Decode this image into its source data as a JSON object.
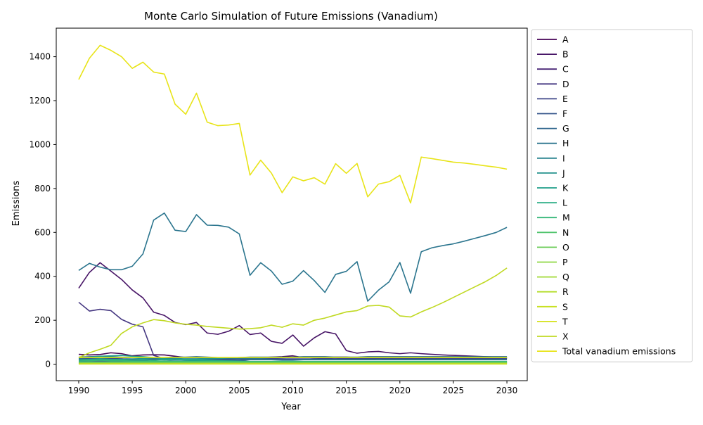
{
  "chart_data": {
    "type": "line",
    "title": "Monte Carlo Simulation of Future Emissions (Vanadium)",
    "xlabel": "Year",
    "ylabel": "Emissions",
    "xlim": [
      1987.9,
      2031.9
    ],
    "ylim": [
      -75,
      1530
    ],
    "xticks": [
      1990,
      1995,
      2000,
      2005,
      2010,
      2015,
      2020,
      2025,
      2030
    ],
    "yticks": [
      0,
      200,
      400,
      600,
      800,
      1000,
      1200,
      1400
    ],
    "grid": false,
    "legend_position": "outside-right",
    "x": [
      1990,
      1991,
      1992,
      1993,
      1994,
      1995,
      1996,
      1997,
      1998,
      1999,
      2000,
      2001,
      2002,
      2003,
      2004,
      2005,
      2006,
      2007,
      2008,
      2009,
      2010,
      2011,
      2012,
      2013,
      2014,
      2015,
      2016,
      2017,
      2018,
      2019,
      2020,
      2021,
      2022,
      2023,
      2024,
      2025,
      2026,
      2027,
      2028,
      2029,
      2030
    ],
    "series": [
      {
        "name": "A",
        "color": "#440154",
        "values": [
          45,
          42,
          44,
          52,
          48,
          38,
          42,
          43,
          42,
          36,
          30,
          32,
          30,
          28,
          28,
          30,
          30,
          30,
          32,
          34,
          38,
          30,
          30,
          30,
          32,
          32,
          30,
          30,
          30,
          30,
          28,
          30,
          32,
          32,
          32,
          31,
          31,
          30,
          30,
          30,
          30
        ]
      },
      {
        "name": "B",
        "color": "#471466",
        "values": [
          346,
          418,
          462,
          424,
          386,
          338,
          302,
          237,
          222,
          190,
          180,
          190,
          142,
          136,
          150,
          176,
          135,
          142,
          104,
          95,
          133,
          82,
          120,
          148,
          138,
          62,
          50,
          56,
          58,
          52,
          48,
          52,
          48,
          45,
          42,
          40,
          38,
          36,
          34,
          32,
          30
        ]
      },
      {
        "name": "C",
        "color": "#482475",
        "values": [
          20,
          24,
          28,
          26,
          24,
          20,
          18,
          22,
          24,
          22,
          20,
          18,
          18,
          20,
          22,
          24,
          22,
          24,
          24,
          22,
          22,
          22,
          24,
          22,
          24,
          24,
          24,
          24,
          26,
          24,
          24,
          24,
          25,
          25,
          25,
          25,
          25,
          25,
          25,
          25,
          25
        ]
      },
      {
        "name": "D",
        "color": "#453781",
        "values": [
          282,
          242,
          250,
          244,
          204,
          182,
          170,
          40,
          25,
          20,
          18,
          18,
          20,
          20,
          22,
          24,
          26,
          24,
          24,
          24,
          22,
          22,
          24,
          26,
          24,
          26,
          26,
          26,
          26,
          26,
          26,
          26,
          26,
          26,
          26,
          26,
          26,
          26,
          26,
          26,
          26
        ]
      },
      {
        "name": "E",
        "color": "#3f4788",
        "values": [
          24,
          26,
          26,
          24,
          24,
          22,
          22,
          24,
          24,
          22,
          24,
          24,
          24,
          24,
          24,
          24,
          26,
          26,
          26,
          24,
          24,
          24,
          24,
          24,
          24,
          26,
          26,
          26,
          26,
          26,
          26,
          26,
          26,
          26,
          26,
          26,
          26,
          26,
          26,
          26,
          26
        ]
      },
      {
        "name": "F",
        "color": "#38588c",
        "values": [
          10,
          12,
          14,
          12,
          12,
          12,
          14,
          12,
          14,
          12,
          12,
          12,
          12,
          12,
          12,
          16,
          12,
          12,
          10,
          10,
          10,
          12,
          12,
          12,
          12,
          12,
          12,
          12,
          12,
          12,
          12,
          12,
          12,
          12,
          12,
          12,
          12,
          12,
          12,
          12,
          12
        ]
      },
      {
        "name": "G",
        "color": "#31678e",
        "values": [
          32,
          34,
          36,
          34,
          32,
          30,
          28,
          30,
          30,
          32,
          32,
          34,
          32,
          30,
          30,
          30,
          32,
          32,
          32,
          32,
          32,
          34,
          34,
          34,
          32,
          32,
          32,
          34,
          34,
          34,
          34,
          34,
          34,
          34,
          34,
          34,
          34,
          34,
          34,
          34,
          34
        ]
      },
      {
        "name": "H",
        "color": "#2b758e",
        "values": [
          427,
          459,
          442,
          430,
          430,
          446,
          502,
          656,
          688,
          610,
          604,
          681,
          633,
          632,
          624,
          593,
          405,
          462,
          424,
          364,
          378,
          426,
          381,
          327,
          409,
          423,
          467,
          287,
          337,
          375,
          463,
          323,
          512,
          530,
          540,
          548,
          560,
          573,
          586,
          600,
          623
        ]
      },
      {
        "name": "I",
        "color": "#26828e",
        "values": [
          18,
          20,
          22,
          20,
          20,
          18,
          18,
          20,
          20,
          18,
          18,
          20,
          20,
          18,
          18,
          18,
          20,
          20,
          20,
          18,
          18,
          20,
          20,
          20,
          20,
          20,
          20,
          20,
          20,
          20,
          20,
          20,
          20,
          20,
          20,
          20,
          20,
          20,
          20,
          20,
          20
        ]
      },
      {
        "name": "J",
        "color": "#21918c",
        "values": [
          28,
          30,
          30,
          32,
          30,
          28,
          26,
          28,
          28,
          26,
          24,
          24,
          26,
          26,
          28,
          28,
          28,
          28,
          30,
          30,
          30,
          30,
          30,
          30,
          30,
          30,
          30,
          30,
          30,
          30,
          30,
          30,
          30,
          30,
          30,
          30,
          30,
          30,
          30,
          30,
          30
        ]
      },
      {
        "name": "K",
        "color": "#1f9e89",
        "values": [
          30,
          32,
          36,
          38,
          40,
          36,
          34,
          30,
          24,
          20,
          18,
          16,
          16,
          14,
          12,
          10,
          10,
          10,
          10,
          8,
          8,
          8,
          8,
          8,
          8,
          8,
          8,
          8,
          8,
          8,
          8,
          8,
          8,
          8,
          8,
          8,
          8,
          8,
          8,
          8,
          8
        ]
      },
      {
        "name": "L",
        "color": "#25ab82",
        "values": [
          20,
          22,
          24,
          22,
          22,
          20,
          22,
          18,
          22,
          20,
          22,
          20,
          18,
          16,
          14,
          12,
          10,
          8,
          8,
          8,
          8,
          8,
          8,
          8,
          8,
          8,
          8,
          8,
          8,
          8,
          8,
          8,
          8,
          8,
          8,
          8,
          8,
          8,
          8,
          8,
          8
        ]
      },
      {
        "name": "M",
        "color": "#35b779",
        "values": [
          14,
          16,
          18,
          16,
          16,
          14,
          14,
          14,
          14,
          12,
          12,
          12,
          12,
          12,
          12,
          12,
          12,
          12,
          12,
          12,
          12,
          12,
          12,
          12,
          12,
          12,
          12,
          12,
          12,
          12,
          12,
          12,
          12,
          12,
          12,
          12,
          12,
          12,
          12,
          12,
          12
        ]
      },
      {
        "name": "N",
        "color": "#4ec36b",
        "values": [
          8,
          10,
          10,
          10,
          10,
          10,
          10,
          10,
          10,
          10,
          10,
          10,
          10,
          10,
          10,
          10,
          10,
          10,
          10,
          10,
          10,
          10,
          10,
          10,
          10,
          10,
          10,
          10,
          10,
          10,
          10,
          10,
          10,
          10,
          10,
          10,
          10,
          10,
          10,
          10,
          10
        ]
      },
      {
        "name": "O",
        "color": "#6ccd5a",
        "values": [
          6,
          6,
          6,
          6,
          6,
          6,
          6,
          6,
          6,
          6,
          6,
          6,
          6,
          6,
          6,
          6,
          6,
          6,
          6,
          6,
          6,
          6,
          6,
          6,
          6,
          6,
          6,
          6,
          6,
          6,
          6,
          6,
          6,
          6,
          6,
          6,
          6,
          6,
          6,
          6,
          6
        ]
      },
      {
        "name": "P",
        "color": "#8fd744",
        "values": [
          4,
          4,
          4,
          4,
          4,
          4,
          4,
          4,
          4,
          4,
          4,
          4,
          4,
          4,
          4,
          4,
          4,
          4,
          4,
          4,
          4,
          4,
          4,
          4,
          4,
          4,
          4,
          4,
          4,
          4,
          4,
          4,
          4,
          4,
          4,
          4,
          4,
          4,
          4,
          4,
          4
        ]
      },
      {
        "name": "Q",
        "color": "#a2da37",
        "values": [
          3,
          3,
          3,
          3,
          3,
          3,
          3,
          3,
          3,
          3,
          3,
          3,
          3,
          3,
          3,
          3,
          3,
          3,
          3,
          3,
          3,
          3,
          3,
          3,
          3,
          3,
          3,
          3,
          3,
          3,
          3,
          3,
          3,
          3,
          3,
          3,
          3,
          3,
          3,
          3,
          3
        ]
      },
      {
        "name": "R",
        "color": "#b5de2b",
        "values": [
          2,
          2,
          2,
          2,
          2,
          2,
          2,
          2,
          2,
          2,
          2,
          2,
          2,
          2,
          2,
          2,
          2,
          2,
          2,
          2,
          2,
          2,
          2,
          2,
          2,
          2,
          2,
          2,
          2,
          2,
          2,
          2,
          2,
          2,
          2,
          2,
          2,
          2,
          2,
          2,
          2
        ]
      },
      {
        "name": "S",
        "color": "#c8e020",
        "values": [
          1,
          1,
          1,
          1,
          1,
          1,
          1,
          1,
          1,
          1,
          1,
          1,
          1,
          1,
          1,
          1,
          1,
          1,
          1,
          1,
          1,
          1,
          1,
          1,
          1,
          1,
          1,
          1,
          1,
          1,
          1,
          1,
          1,
          1,
          1,
          1,
          1,
          1,
          1,
          1,
          1
        ]
      },
      {
        "name": "T",
        "color": "#d5e21a",
        "values": [
          30,
          30,
          30,
          30,
          30,
          30,
          30,
          30,
          30,
          30,
          30,
          30,
          30,
          30,
          30,
          30,
          30,
          30,
          30,
          30,
          30,
          30,
          30,
          30,
          30,
          30,
          30,
          30,
          30,
          30,
          30,
          30,
          30,
          30,
          30,
          30,
          30,
          30,
          30,
          30,
          30
        ]
      },
      {
        "name": "X",
        "color": "#c0d922",
        "values": [
          30,
          52,
          68,
          86,
          140,
          170,
          188,
          203,
          198,
          188,
          182,
          178,
          172,
          168,
          164,
          160,
          162,
          166,
          178,
          168,
          184,
          178,
          200,
          210,
          224,
          238,
          244,
          265,
          268,
          260,
          220,
          215,
          238,
          258,
          280,
          304,
          328,
          352,
          376,
          404,
          438
        ]
      },
      {
        "name": "Total vanadium emissions",
        "color": "#e8e419",
        "values": [
          1296,
          1393,
          1452,
          1429,
          1400,
          1347,
          1375,
          1330,
          1321,
          1184,
          1138,
          1234,
          1102,
          1086,
          1089,
          1096,
          861,
          929,
          870,
          781,
          853,
          835,
          849,
          820,
          913,
          869,
          914,
          762,
          820,
          831,
          860,
          734,
          943,
          936,
          928,
          920,
          916,
          910,
          903,
          897,
          888
        ]
      }
    ]
  }
}
